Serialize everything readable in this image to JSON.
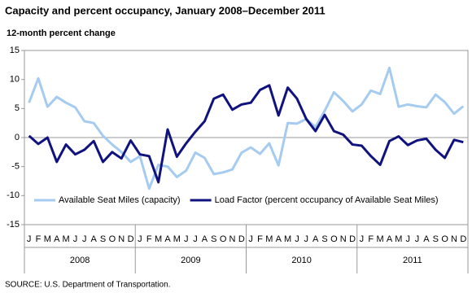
{
  "chart_data": {
    "type": "line",
    "title": "Capacity and percent occupancy, January 2008–December 2011",
    "y_label": "12-month percent change",
    "source": "SOURCE: U.S. Department of Transportation.",
    "categories": [
      "J",
      "F",
      "M",
      "A",
      "M",
      "J",
      "J",
      "A",
      "S",
      "O",
      "N",
      "D",
      "J",
      "F",
      "M",
      "A",
      "M",
      "J",
      "J",
      "A",
      "S",
      "O",
      "N",
      "D",
      "J",
      "F",
      "M",
      "A",
      "M",
      "J",
      "J",
      "A",
      "S",
      "O",
      "N",
      "D",
      "J",
      "F",
      "M",
      "A",
      "M",
      "J",
      "J",
      "A",
      "S",
      "O",
      "N",
      "D"
    ],
    "x_groups": [
      "2008",
      "2009",
      "2010",
      "2011"
    ],
    "series": [
      {
        "name": "Available Seat Miles (capacity)",
        "color": "#a6cbf0",
        "values": [
          6,
          10.2,
          5.3,
          7,
          6,
          5.2,
          2.8,
          2.5,
          0.3,
          -1.2,
          -2.5,
          -4.2,
          -3.2,
          -8.8,
          -4.7,
          -5,
          -6.8,
          -5.7,
          -2.6,
          -3.5,
          -6.3,
          -6,
          -5.5,
          -2.6,
          -1.7,
          -2.8,
          -1,
          -4.8,
          2.5,
          2.4,
          3.2,
          1.8,
          4.6,
          7.8,
          6.3,
          4.5,
          5.7,
          8.1,
          7.5,
          12,
          5.3,
          5.7,
          5.4,
          5.2,
          7.4,
          6.1,
          4.1,
          5.4
        ]
      },
      {
        "name": "Load Factor (percent occupancy of Available Seat Miles)",
        "color": "#10137e",
        "values": [
          0.3,
          -1.1,
          0,
          -4.2,
          -1.2,
          -2.9,
          -2.1,
          -0.6,
          -4.2,
          -2.5,
          -3.6,
          -0.5,
          -2.9,
          -3.2,
          -7.7,
          1.4,
          -3.3,
          -1,
          1,
          2.8,
          6.7,
          7.4,
          4.8,
          5.7,
          6,
          8.2,
          9,
          3.8,
          8.6,
          6.7,
          3.2,
          1.1,
          3.9,
          1.1,
          0.5,
          -1.2,
          -1.4,
          -3.2,
          -4.7,
          -0.6,
          0.2,
          -1.3,
          -0.5,
          -0.2,
          -2.1,
          -3.5,
          -0.4,
          -0.8
        ]
      }
    ],
    "ylim": [
      -15,
      15
    ],
    "yticks": [
      15,
      10,
      5,
      0,
      -5,
      -10,
      -15
    ],
    "legend": "bottom",
    "grid": false
  }
}
